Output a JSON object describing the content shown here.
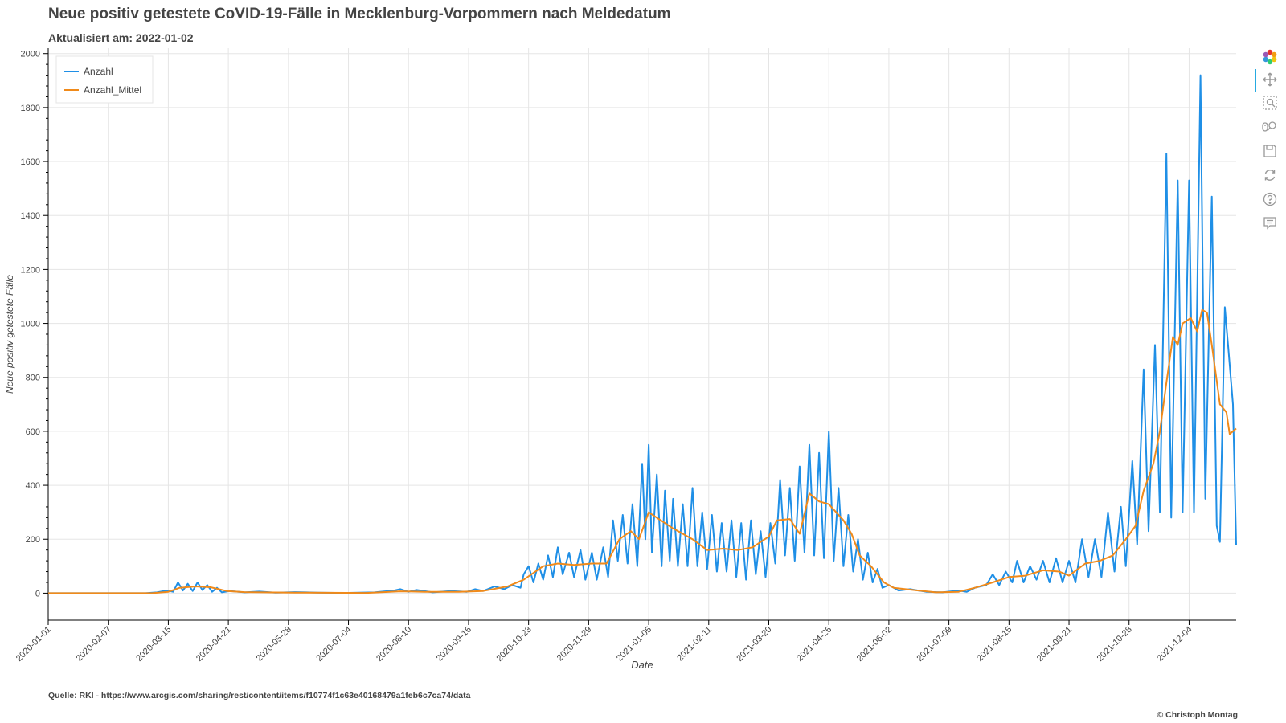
{
  "header": {
    "title": "Neue positiv getestete CoVID-19-Fälle in Mecklenburg-Vorpommern nach Meldedatum",
    "subtitle": "Aktualisiert am: 2022-01-02"
  },
  "footer": {
    "source": "Quelle: RKI - https://www.arcgis.com/sharing/rest/content/items/f10774f1c63e40168479a1feb6c7ca74/data",
    "copyright": "© Christoph Montag"
  },
  "colors": {
    "anzahl": "#1f8fe6",
    "mittel": "#f08a1a",
    "grid": "#e5e5e5",
    "axis": "#000000",
    "tool_active": "#26aae1"
  },
  "toolbar": [
    {
      "name": "bokeh-logo-icon",
      "active": false
    },
    {
      "name": "pan-icon",
      "active": true
    },
    {
      "name": "box-zoom-icon",
      "active": false
    },
    {
      "name": "wheel-zoom-icon",
      "active": false
    },
    {
      "name": "save-icon",
      "active": false
    },
    {
      "name": "reset-icon",
      "active": false
    },
    {
      "name": "help-icon",
      "active": false
    },
    {
      "name": "hover-icon",
      "active": true
    }
  ],
  "chart_data": {
    "type": "line",
    "title": "Neue positiv getestete CoVID-19-Fälle in Mecklenburg-Vorpommern nach Meldedatum",
    "xlabel": "Date",
    "ylabel": "Neue positiv getestete Fälle",
    "x_start": "2020-01-01",
    "x_end": "2022-01-02",
    "ylim": [
      -100,
      2020
    ],
    "y_ticks": [
      0,
      200,
      400,
      600,
      800,
      1000,
      1200,
      1400,
      1600,
      1800,
      2000
    ],
    "x_ticks": [
      "2020-01-01",
      "2020-02-07",
      "2020-03-15",
      "2020-04-21",
      "2020-05-28",
      "2020-07-04",
      "2020-08-10",
      "2020-09-16",
      "2020-10-23",
      "2020-11-29",
      "2021-01-05",
      "2021-02-11",
      "2021-03-20",
      "2021-04-26",
      "2021-06-02",
      "2021-07-09",
      "2021-08-15",
      "2021-09-21",
      "2021-10-28",
      "2021-12-04"
    ],
    "legend": {
      "position": "top-left",
      "entries": [
        "Anzahl",
        "Anzahl_Mittel"
      ]
    },
    "grid": true,
    "series": [
      {
        "name": "Anzahl",
        "points": [
          [
            "2020-01-01",
            0
          ],
          [
            "2020-03-01",
            0
          ],
          [
            "2020-03-08",
            3
          ],
          [
            "2020-03-14",
            10
          ],
          [
            "2020-03-18",
            5
          ],
          [
            "2020-03-21",
            40
          ],
          [
            "2020-03-24",
            10
          ],
          [
            "2020-03-27",
            35
          ],
          [
            "2020-03-30",
            8
          ],
          [
            "2020-04-02",
            40
          ],
          [
            "2020-04-05",
            12
          ],
          [
            "2020-04-08",
            30
          ],
          [
            "2020-04-11",
            5
          ],
          [
            "2020-04-14",
            20
          ],
          [
            "2020-04-17",
            3
          ],
          [
            "2020-04-22",
            8
          ],
          [
            "2020-05-01",
            3
          ],
          [
            "2020-05-10",
            6
          ],
          [
            "2020-05-20",
            2
          ],
          [
            "2020-06-01",
            4
          ],
          [
            "2020-06-15",
            2
          ],
          [
            "2020-07-01",
            1
          ],
          [
            "2020-07-20",
            3
          ],
          [
            "2020-08-01",
            10
          ],
          [
            "2020-08-05",
            15
          ],
          [
            "2020-08-10",
            5
          ],
          [
            "2020-08-15",
            12
          ],
          [
            "2020-08-25",
            3
          ],
          [
            "2020-09-05",
            8
          ],
          [
            "2020-09-15",
            5
          ],
          [
            "2020-09-20",
            15
          ],
          [
            "2020-09-25",
            8
          ],
          [
            "2020-10-02",
            25
          ],
          [
            "2020-10-08",
            15
          ],
          [
            "2020-10-13",
            30
          ],
          [
            "2020-10-18",
            20
          ],
          [
            "2020-10-20",
            70
          ],
          [
            "2020-10-23",
            100
          ],
          [
            "2020-10-26",
            40
          ],
          [
            "2020-10-29",
            110
          ],
          [
            "2020-11-01",
            50
          ],
          [
            "2020-11-04",
            140
          ],
          [
            "2020-11-07",
            60
          ],
          [
            "2020-11-10",
            170
          ],
          [
            "2020-11-13",
            70
          ],
          [
            "2020-11-17",
            150
          ],
          [
            "2020-11-20",
            60
          ],
          [
            "2020-11-24",
            160
          ],
          [
            "2020-11-27",
            50
          ],
          [
            "2020-12-01",
            150
          ],
          [
            "2020-12-04",
            50
          ],
          [
            "2020-12-08",
            170
          ],
          [
            "2020-12-11",
            60
          ],
          [
            "2020-12-14",
            270
          ],
          [
            "2020-12-17",
            120
          ],
          [
            "2020-12-20",
            290
          ],
          [
            "2020-12-23",
            110
          ],
          [
            "2020-12-26",
            330
          ],
          [
            "2020-12-29",
            100
          ],
          [
            "2021-01-01",
            480
          ],
          [
            "2021-01-03",
            200
          ],
          [
            "2021-01-05",
            550
          ],
          [
            "2021-01-07",
            150
          ],
          [
            "2021-01-10",
            440
          ],
          [
            "2021-01-13",
            100
          ],
          [
            "2021-01-15",
            380
          ],
          [
            "2021-01-18",
            120
          ],
          [
            "2021-01-20",
            350
          ],
          [
            "2021-01-23",
            100
          ],
          [
            "2021-01-26",
            330
          ],
          [
            "2021-01-29",
            100
          ],
          [
            "2021-02-01",
            390
          ],
          [
            "2021-02-04",
            100
          ],
          [
            "2021-02-07",
            300
          ],
          [
            "2021-02-10",
            90
          ],
          [
            "2021-02-13",
            290
          ],
          [
            "2021-02-16",
            80
          ],
          [
            "2021-02-19",
            260
          ],
          [
            "2021-02-22",
            80
          ],
          [
            "2021-02-25",
            270
          ],
          [
            "2021-02-28",
            60
          ],
          [
            "2021-03-03",
            260
          ],
          [
            "2021-03-06",
            50
          ],
          [
            "2021-03-09",
            270
          ],
          [
            "2021-03-12",
            70
          ],
          [
            "2021-03-15",
            230
          ],
          [
            "2021-03-18",
            60
          ],
          [
            "2021-03-21",
            260
          ],
          [
            "2021-03-24",
            110
          ],
          [
            "2021-03-27",
            420
          ],
          [
            "2021-03-30",
            140
          ],
          [
            "2021-04-02",
            390
          ],
          [
            "2021-04-05",
            120
          ],
          [
            "2021-04-08",
            470
          ],
          [
            "2021-04-11",
            150
          ],
          [
            "2021-04-14",
            550
          ],
          [
            "2021-04-17",
            140
          ],
          [
            "2021-04-20",
            520
          ],
          [
            "2021-04-23",
            130
          ],
          [
            "2021-04-26",
            600
          ],
          [
            "2021-04-29",
            120
          ],
          [
            "2021-05-02",
            390
          ],
          [
            "2021-05-05",
            100
          ],
          [
            "2021-05-08",
            290
          ],
          [
            "2021-05-11",
            80
          ],
          [
            "2021-05-14",
            200
          ],
          [
            "2021-05-17",
            50
          ],
          [
            "2021-05-20",
            150
          ],
          [
            "2021-05-23",
            40
          ],
          [
            "2021-05-26",
            90
          ],
          [
            "2021-05-29",
            20
          ],
          [
            "2021-06-02",
            30
          ],
          [
            "2021-06-08",
            10
          ],
          [
            "2021-06-15",
            15
          ],
          [
            "2021-06-25",
            5
          ],
          [
            "2021-07-05",
            3
          ],
          [
            "2021-07-15",
            10
          ],
          [
            "2021-07-20",
            5
          ],
          [
            "2021-07-25",
            20
          ],
          [
            "2021-08-01",
            30
          ],
          [
            "2021-08-05",
            70
          ],
          [
            "2021-08-09",
            30
          ],
          [
            "2021-08-13",
            80
          ],
          [
            "2021-08-17",
            40
          ],
          [
            "2021-08-20",
            120
          ],
          [
            "2021-08-24",
            40
          ],
          [
            "2021-08-28",
            100
          ],
          [
            "2021-09-01",
            50
          ],
          [
            "2021-09-05",
            120
          ],
          [
            "2021-09-09",
            40
          ],
          [
            "2021-09-13",
            130
          ],
          [
            "2021-09-17",
            40
          ],
          [
            "2021-09-21",
            120
          ],
          [
            "2021-09-25",
            40
          ],
          [
            "2021-09-29",
            200
          ],
          [
            "2021-10-03",
            60
          ],
          [
            "2021-10-07",
            200
          ],
          [
            "2021-10-11",
            60
          ],
          [
            "2021-10-15",
            300
          ],
          [
            "2021-10-19",
            80
          ],
          [
            "2021-10-23",
            320
          ],
          [
            "2021-10-26",
            100
          ],
          [
            "2021-10-30",
            490
          ],
          [
            "2021-11-02",
            180
          ],
          [
            "2021-11-06",
            830
          ],
          [
            "2021-11-09",
            230
          ],
          [
            "2021-11-13",
            920
          ],
          [
            "2021-11-16",
            300
          ],
          [
            "2021-11-20",
            1630
          ],
          [
            "2021-11-23",
            280
          ],
          [
            "2021-11-27",
            1530
          ],
          [
            "2021-11-30",
            300
          ],
          [
            "2021-12-04",
            1530
          ],
          [
            "2021-12-07",
            300
          ],
          [
            "2021-12-11",
            1920
          ],
          [
            "2021-12-14",
            350
          ],
          [
            "2021-12-18",
            1470
          ],
          [
            "2021-12-21",
            250
          ],
          [
            "2021-12-23",
            190
          ],
          [
            "2021-12-26",
            1060
          ],
          [
            "2021-12-28",
            920
          ],
          [
            "2021-12-31",
            700
          ],
          [
            "2022-01-02",
            180
          ]
        ]
      },
      {
        "name": "Anzahl_Mittel",
        "points": [
          [
            "2020-01-01",
            0
          ],
          [
            "2020-03-05",
            0
          ],
          [
            "2020-03-15",
            5
          ],
          [
            "2020-03-22",
            20
          ],
          [
            "2020-04-01",
            25
          ],
          [
            "2020-04-10",
            22
          ],
          [
            "2020-04-20",
            8
          ],
          [
            "2020-05-01",
            4
          ],
          [
            "2020-06-01",
            2
          ],
          [
            "2020-07-15",
            1
          ],
          [
            "2020-08-05",
            7
          ],
          [
            "2020-08-20",
            5
          ],
          [
            "2020-09-10",
            5
          ],
          [
            "2020-09-25",
            8
          ],
          [
            "2020-10-10",
            25
          ],
          [
            "2020-10-20",
            50
          ],
          [
            "2020-11-01",
            100
          ],
          [
            "2020-11-10",
            110
          ],
          [
            "2020-11-20",
            105
          ],
          [
            "2020-12-01",
            110
          ],
          [
            "2020-12-10",
            110
          ],
          [
            "2020-12-18",
            200
          ],
          [
            "2020-12-25",
            230
          ],
          [
            "2020-12-30",
            200
          ],
          [
            "2021-01-05",
            300
          ],
          [
            "2021-01-10",
            280
          ],
          [
            "2021-01-20",
            240
          ],
          [
            "2021-02-01",
            200
          ],
          [
            "2021-02-10",
            160
          ],
          [
            "2021-02-20",
            165
          ],
          [
            "2021-03-01",
            160
          ],
          [
            "2021-03-10",
            170
          ],
          [
            "2021-03-20",
            210
          ],
          [
            "2021-03-25",
            270
          ],
          [
            "2021-04-02",
            275
          ],
          [
            "2021-04-08",
            220
          ],
          [
            "2021-04-14",
            370
          ],
          [
            "2021-04-20",
            340
          ],
          [
            "2021-04-26",
            330
          ],
          [
            "2021-05-05",
            270
          ],
          [
            "2021-05-10",
            220
          ],
          [
            "2021-05-15",
            140
          ],
          [
            "2021-05-22",
            100
          ],
          [
            "2021-05-30",
            40
          ],
          [
            "2021-06-05",
            20
          ],
          [
            "2021-06-20",
            10
          ],
          [
            "2021-07-01",
            3
          ],
          [
            "2021-07-15",
            5
          ],
          [
            "2021-07-25",
            20
          ],
          [
            "2021-08-05",
            40
          ],
          [
            "2021-08-15",
            60
          ],
          [
            "2021-08-25",
            65
          ],
          [
            "2021-09-05",
            85
          ],
          [
            "2021-09-15",
            80
          ],
          [
            "2021-09-21",
            65
          ],
          [
            "2021-10-01",
            110
          ],
          [
            "2021-10-10",
            120
          ],
          [
            "2021-10-18",
            140
          ],
          [
            "2021-10-26",
            200
          ],
          [
            "2021-11-01",
            250
          ],
          [
            "2021-11-06",
            380
          ],
          [
            "2021-11-12",
            480
          ],
          [
            "2021-11-16",
            600
          ],
          [
            "2021-11-20",
            780
          ],
          [
            "2021-11-24",
            950
          ],
          [
            "2021-11-27",
            920
          ],
          [
            "2021-11-30",
            1000
          ],
          [
            "2021-12-05",
            1020
          ],
          [
            "2021-12-09",
            970
          ],
          [
            "2021-12-12",
            1050
          ],
          [
            "2021-12-15",
            1040
          ],
          [
            "2021-12-18",
            920
          ],
          [
            "2021-12-23",
            700
          ],
          [
            "2021-12-27",
            670
          ],
          [
            "2021-12-29",
            590
          ],
          [
            "2022-01-02",
            610
          ]
        ]
      }
    ]
  }
}
